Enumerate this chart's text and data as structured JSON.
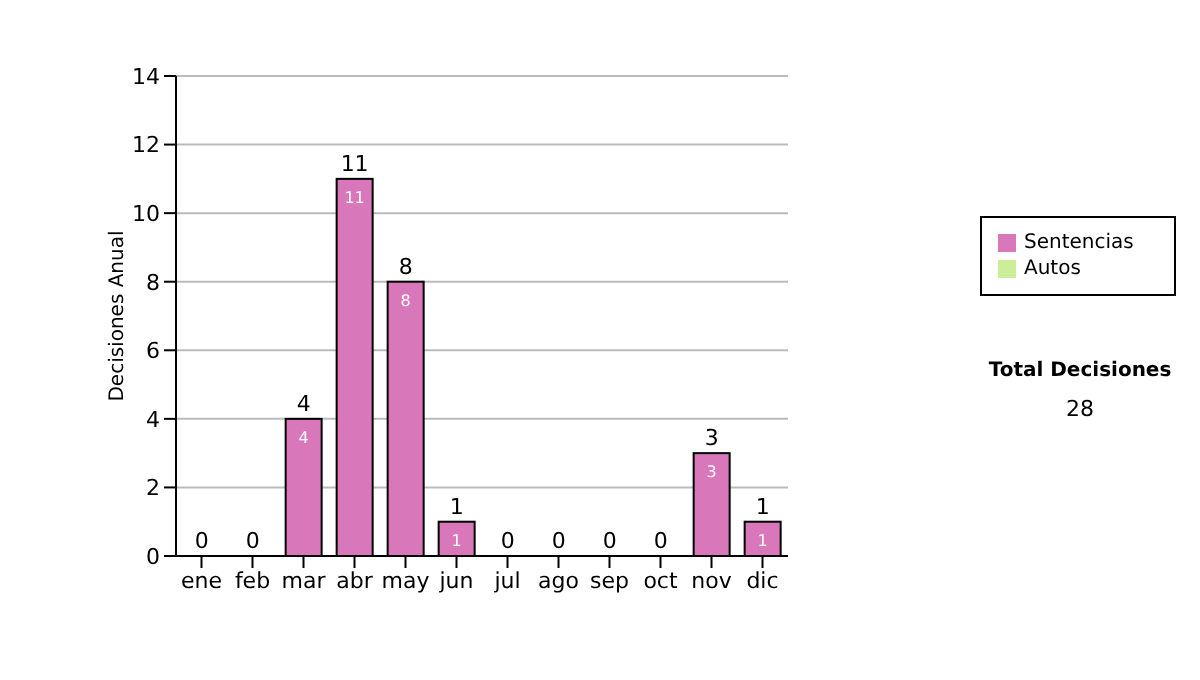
{
  "chart_data": {
    "type": "bar",
    "ylabel": "Decisiones Anual",
    "categories": [
      "ene",
      "feb",
      "mar",
      "abr",
      "may",
      "jun",
      "jul",
      "ago",
      "sep",
      "oct",
      "nov",
      "dic"
    ],
    "series": [
      {
        "name": "Sentencias",
        "color": "#d977bb",
        "values": [
          0,
          0,
          4,
          11,
          8,
          1,
          0,
          0,
          0,
          0,
          3,
          1
        ],
        "value_labels": [
          null,
          null,
          "4",
          "11",
          "8",
          "1",
          null,
          null,
          null,
          null,
          "3",
          "1"
        ]
      },
      {
        "name": "Autos",
        "color": "#ccee99",
        "values": [
          0,
          0,
          0,
          0,
          0,
          0,
          0,
          0,
          0,
          0,
          0,
          0
        ]
      }
    ],
    "stacked": true,
    "totals": [
      "0",
      "0",
      "4",
      "11",
      "8",
      "1",
      "0",
      "0",
      "0",
      "0",
      "3",
      "1"
    ],
    "ylim": [
      0,
      14
    ],
    "yticks": [
      0,
      2,
      4,
      6,
      8,
      10,
      12,
      14
    ],
    "grid": "y",
    "legend": "right",
    "annotations": [
      "Total Decisiones",
      "28"
    ]
  }
}
